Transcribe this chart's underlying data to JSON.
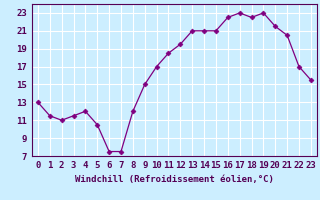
{
  "x": [
    0,
    1,
    2,
    3,
    4,
    5,
    6,
    7,
    8,
    9,
    10,
    11,
    12,
    13,
    14,
    15,
    16,
    17,
    18,
    19,
    20,
    21,
    22,
    23
  ],
  "y": [
    13,
    11.5,
    11,
    11.5,
    12,
    10.5,
    7.5,
    7.5,
    12,
    15,
    17,
    18.5,
    19.5,
    21,
    21,
    21,
    22.5,
    23,
    22.5,
    23,
    21.5,
    20.5,
    17,
    15.5
  ],
  "line_color": "#800080",
  "marker": "D",
  "marker_size": 2.5,
  "bg_color": "#cceeff",
  "grid_color": "#ffffff",
  "xlabel": "Windchill (Refroidissement éolien,°C)",
  "yticks": [
    7,
    9,
    11,
    13,
    15,
    17,
    19,
    21,
    23
  ],
  "xlim": [
    -0.5,
    23.5
  ],
  "ylim": [
    7,
    24
  ],
  "xlabel_fontsize": 6.5,
  "tick_fontsize": 6.5,
  "tick_color": "#550055",
  "spine_color": "#550055"
}
